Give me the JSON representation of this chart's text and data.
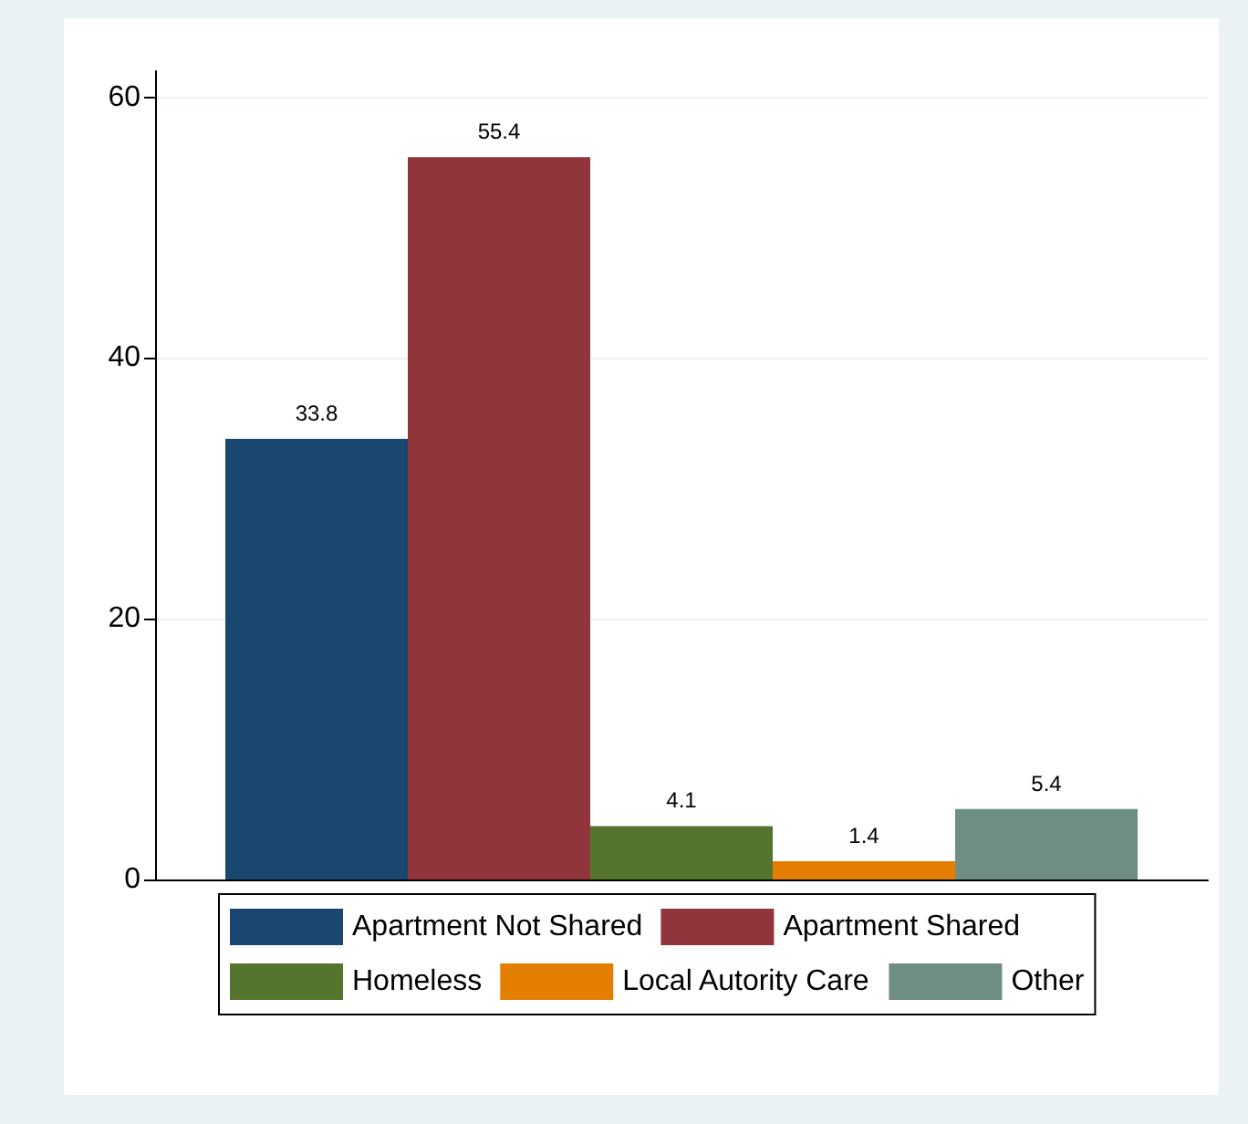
{
  "chart_data": {
    "type": "bar",
    "categories": [
      null
    ],
    "series": [
      {
        "name": "Apartment Not Shared",
        "color": "#1a476f",
        "values": [
          33.8
        ]
      },
      {
        "name": "Apartment Shared",
        "color": "#90353b",
        "values": [
          55.4
        ]
      },
      {
        "name": "Homeless",
        "color": "#55752f",
        "values": [
          4.1
        ]
      },
      {
        "name": "Local Autority Care",
        "color": "#e37e00",
        "values": [
          1.4
        ]
      },
      {
        "name": "Other",
        "color": "#6e8e84",
        "values": [
          5.4
        ]
      }
    ],
    "ylim": [
      0,
      62
    ],
    "yticks": [
      0,
      20,
      40,
      60
    ],
    "grid": "y",
    "legend": "bottom",
    "data_labels": true
  }
}
